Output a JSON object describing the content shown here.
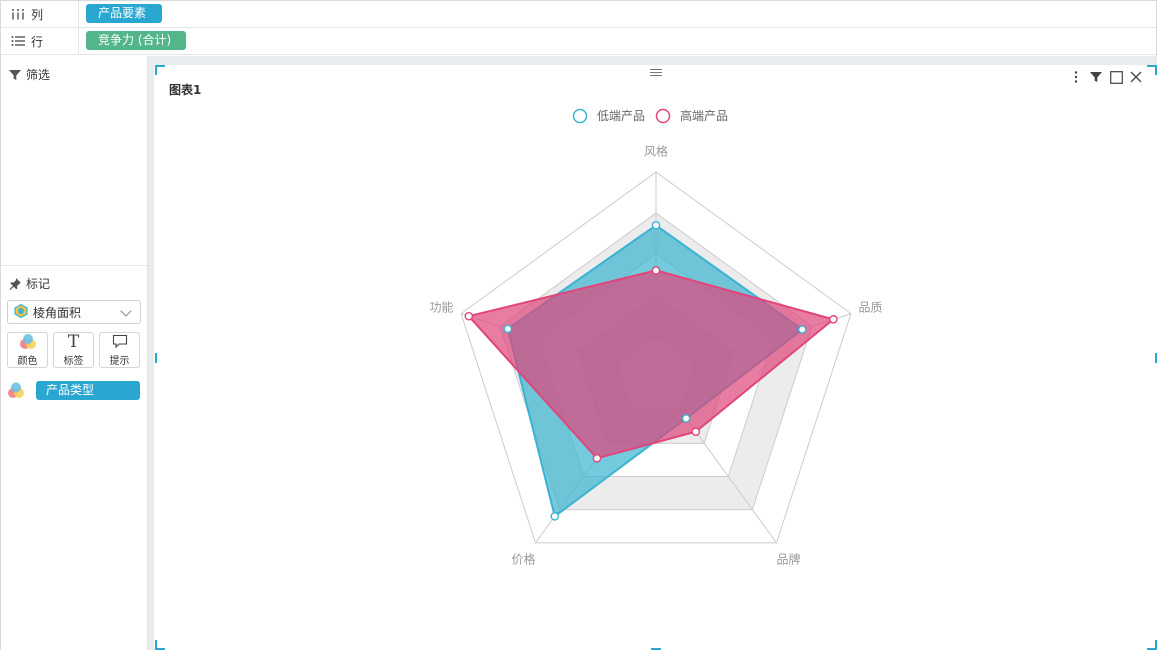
{
  "shelves": {
    "columns": {
      "label": "列",
      "pill": "产品要素"
    },
    "rows": {
      "label": "行",
      "pill": "竞争力 (合计)"
    }
  },
  "left": {
    "filter_label": "筛选",
    "marks_label": "标记",
    "mark_type": "棱角面积",
    "buttons": {
      "color": "颜色",
      "label": "标签",
      "tooltip": "提示"
    },
    "color_field": "产品类型"
  },
  "chart": {
    "title": "图表1"
  },
  "colors": {
    "low": "#3ab3d0",
    "high": "#e0457b",
    "accent": "#2aa7d1",
    "grid": "#cccccc",
    "band": "#ececec"
  },
  "chart_data": {
    "type": "radar",
    "title": "图表1",
    "categories": [
      "风格",
      "品质",
      "品牌",
      "价格",
      "功能"
    ],
    "max": 100,
    "grid_levels": 5,
    "legend_position": "top-center",
    "series": [
      {
        "name": "低端产品",
        "values": [
          74,
          75,
          25,
          84,
          76
        ]
      },
      {
        "name": "高端产品",
        "values": [
          52,
          91,
          33,
          49,
          96
        ]
      }
    ]
  }
}
